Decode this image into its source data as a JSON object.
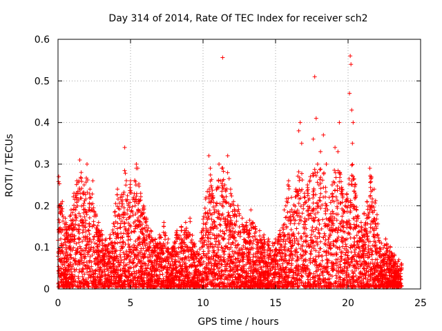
{
  "chart_data": {
    "type": "scatter",
    "title": "Day 314 of 2014, Rate Of TEC Index for receiver sch2",
    "xlabel": "GPS time / hours",
    "ylabel": "ROTI / TECUs",
    "xlim": [
      0,
      25
    ],
    "ylim": [
      0,
      0.6
    ],
    "x_ticks": [
      0,
      5,
      10,
      15,
      20,
      25
    ],
    "y_ticks": [
      0,
      0.1,
      0.2,
      0.3,
      0.4,
      0.5,
      0.6
    ],
    "x_tick_labels": [
      "0",
      "5",
      "10",
      "15",
      "20",
      "25"
    ],
    "y_tick_labels": [
      "0",
      "0.1",
      "0.2",
      "0.3",
      "0.4",
      "0.5",
      "0.6"
    ],
    "grid": true,
    "marker": "+",
    "color": "#ff0000",
    "series": [
      {
        "name": "ROTI",
        "points": [
          [
            0.05,
            0.27
          ],
          [
            0.1,
            0.16
          ],
          [
            0.2,
            0.19
          ],
          [
            0.3,
            0.21
          ],
          [
            0.5,
            0.17
          ],
          [
            0.7,
            0.15
          ],
          [
            0.9,
            0.19
          ],
          [
            1.1,
            0.23
          ],
          [
            1.3,
            0.26
          ],
          [
            1.5,
            0.31
          ],
          [
            1.6,
            0.28
          ],
          [
            1.8,
            0.25
          ],
          [
            2.0,
            0.3
          ],
          [
            2.2,
            0.24
          ],
          [
            2.4,
            0.26
          ],
          [
            2.6,
            0.18
          ],
          [
            2.8,
            0.16
          ],
          [
            3.0,
            0.14
          ],
          [
            3.3,
            0.12
          ],
          [
            3.6,
            0.13
          ],
          [
            3.9,
            0.15
          ],
          [
            4.1,
            0.24
          ],
          [
            4.3,
            0.22
          ],
          [
            4.5,
            0.18
          ],
          [
            4.6,
            0.34
          ],
          [
            4.8,
            0.19
          ],
          [
            5.0,
            0.26
          ],
          [
            5.2,
            0.22
          ],
          [
            5.4,
            0.3
          ],
          [
            5.5,
            0.29
          ],
          [
            5.7,
            0.23
          ],
          [
            5.9,
            0.2
          ],
          [
            6.1,
            0.17
          ],
          [
            6.4,
            0.14
          ],
          [
            6.7,
            0.12
          ],
          [
            7.0,
            0.13
          ],
          [
            7.3,
            0.16
          ],
          [
            7.6,
            0.12
          ],
          [
            7.9,
            0.1
          ],
          [
            8.2,
            0.14
          ],
          [
            8.5,
            0.15
          ],
          [
            8.8,
            0.16
          ],
          [
            9.1,
            0.17
          ],
          [
            9.3,
            0.11
          ],
          [
            9.6,
            0.09
          ],
          [
            9.9,
            0.12
          ],
          [
            10.2,
            0.22
          ],
          [
            10.4,
            0.32
          ],
          [
            10.5,
            0.29
          ],
          [
            10.7,
            0.22
          ],
          [
            10.9,
            0.2
          ],
          [
            11.1,
            0.3
          ],
          [
            11.2,
            0.26
          ],
          [
            11.3,
            0.29
          ],
          [
            11.35,
            0.556
          ],
          [
            11.5,
            0.25
          ],
          [
            11.7,
            0.32
          ],
          [
            11.9,
            0.24
          ],
          [
            12.1,
            0.21
          ],
          [
            12.4,
            0.2
          ],
          [
            12.7,
            0.17
          ],
          [
            13.0,
            0.16
          ],
          [
            13.3,
            0.19
          ],
          [
            13.6,
            0.15
          ],
          [
            13.9,
            0.14
          ],
          [
            14.2,
            0.13
          ],
          [
            14.5,
            0.12
          ],
          [
            14.8,
            0.11
          ],
          [
            15.0,
            0.12
          ],
          [
            15.3,
            0.14
          ],
          [
            15.6,
            0.19
          ],
          [
            15.9,
            0.26
          ],
          [
            16.1,
            0.22
          ],
          [
            16.4,
            0.24
          ],
          [
            16.6,
            0.38
          ],
          [
            16.7,
            0.4
          ],
          [
            16.8,
            0.35
          ],
          [
            17.0,
            0.23
          ],
          [
            17.2,
            0.25
          ],
          [
            17.4,
            0.27
          ],
          [
            17.6,
            0.36
          ],
          [
            17.7,
            0.51
          ],
          [
            17.8,
            0.41
          ],
          [
            17.9,
            0.3
          ],
          [
            18.1,
            0.33
          ],
          [
            18.3,
            0.37
          ],
          [
            18.5,
            0.3
          ],
          [
            18.7,
            0.22
          ],
          [
            18.9,
            0.25
          ],
          [
            19.1,
            0.34
          ],
          [
            19.3,
            0.33
          ],
          [
            19.4,
            0.4
          ],
          [
            19.6,
            0.24
          ],
          [
            19.8,
            0.2
          ],
          [
            20.0,
            0.21
          ],
          [
            20.1,
            0.47
          ],
          [
            20.15,
            0.56
          ],
          [
            20.2,
            0.54
          ],
          [
            20.25,
            0.43
          ],
          [
            20.3,
            0.35
          ],
          [
            20.35,
            0.4
          ],
          [
            20.5,
            0.22
          ],
          [
            20.7,
            0.17
          ],
          [
            20.9,
            0.16
          ],
          [
            21.1,
            0.18
          ],
          [
            21.3,
            0.21
          ],
          [
            21.5,
            0.29
          ],
          [
            21.6,
            0.27
          ],
          [
            21.8,
            0.24
          ],
          [
            22.0,
            0.13
          ],
          [
            22.3,
            0.11
          ],
          [
            22.6,
            0.12
          ],
          [
            22.9,
            0.1
          ],
          [
            23.2,
            0.08
          ],
          [
            23.5,
            0.07
          ],
          [
            23.7,
            0.06
          ]
        ]
      }
    ]
  }
}
